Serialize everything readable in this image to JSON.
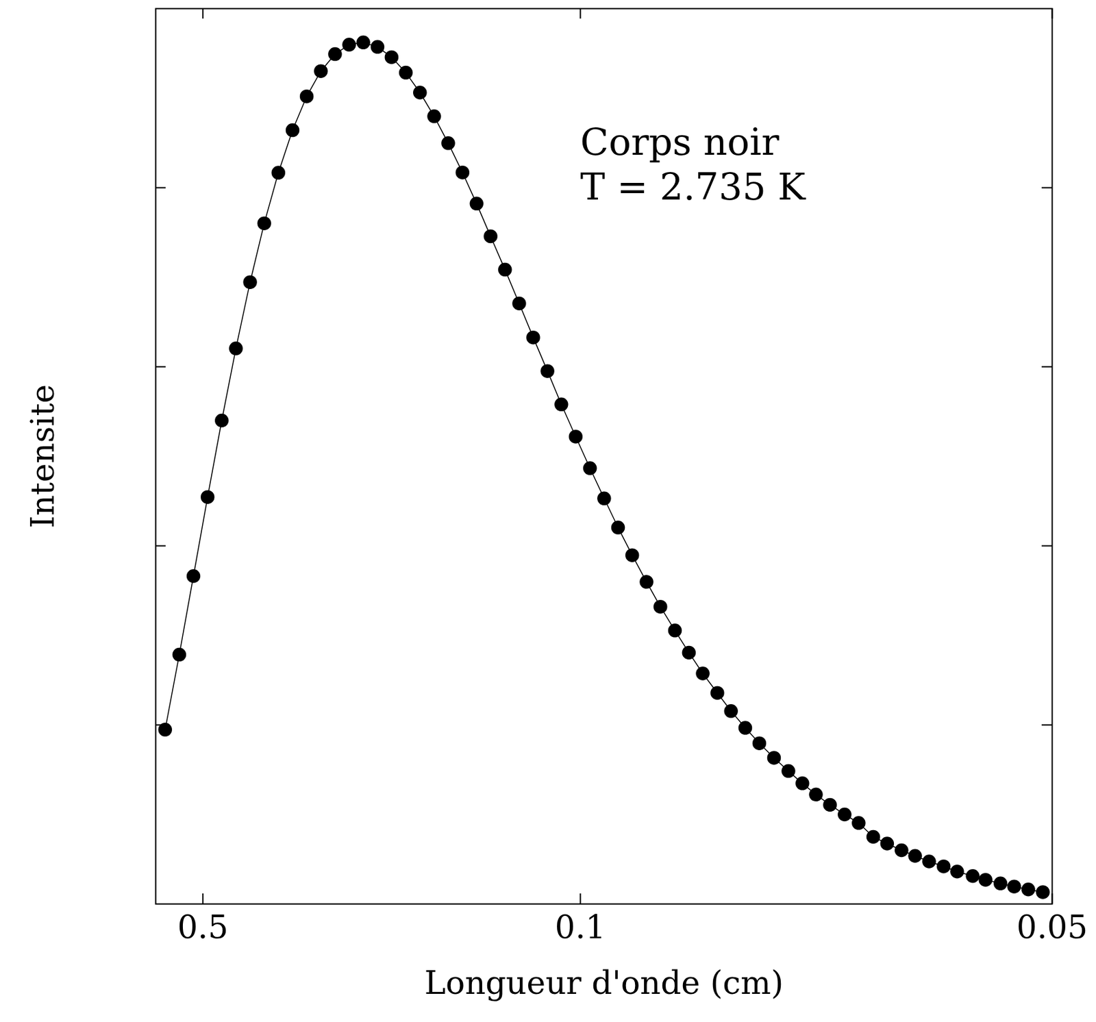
{
  "chart_data": {
    "type": "line",
    "marker": "circle",
    "color": "#000000",
    "xlabel": "Longueur d'onde (cm)",
    "ylabel": "Intensite",
    "annotations": [
      {
        "text": "Corps noir",
        "x": 0.1,
        "y": 340
      },
      {
        "text": "T = 2.735 K",
        "x": 0.1,
        "y": 320
      }
    ],
    "xlim": [
      1,
      0.05
    ],
    "xticks": [
      0.5,
      0.1,
      0.05
    ],
    "ylim": [
      0,
      400
    ],
    "yticks": [
      80,
      160,
      240,
      320
    ],
    "tick_labels": "x",
    "grid": false,
    "x": [
      0.8333,
      0.6667,
      0.5556,
      0.4762,
      0.4167,
      0.3704,
      0.3333,
      0.303,
      0.2778,
      0.2564,
      0.2381,
      0.2222,
      0.2083,
      0.1961,
      0.1852,
      0.1754,
      0.1667,
      0.1587,
      0.1515,
      0.1449,
      0.1389,
      0.1333,
      0.1282,
      0.1235,
      0.119,
      0.1149,
      0.1111,
      0.1075,
      0.1042,
      0.101,
      0.098,
      0.0952,
      0.0926,
      0.0901,
      0.0877,
      0.0855,
      0.0833,
      0.0813,
      0.0794,
      0.0775,
      0.0758,
      0.0741,
      0.0725,
      0.0709,
      0.0694,
      0.068,
      0.0667,
      0.0654,
      0.0641,
      0.0629,
      0.0617,
      0.0606,
      0.0595,
      0.0585,
      0.0575,
      0.0565,
      0.0556,
      0.0546,
      0.0538,
      0.0529,
      0.0521,
      0.0513,
      0.0505
    ],
    "values": [
      77.9,
      111.4,
      146.5,
      181.8,
      216.0,
      248.2,
      277.8,
      304.1,
      326.7,
      345.7,
      360.8,
      372.1,
      379.7,
      383.9,
      384.9,
      382.9,
      378.3,
      371.4,
      362.5,
      351.9,
      339.9,
      326.8,
      312.9,
      298.3,
      283.4,
      268.3,
      253.1,
      238.1,
      223.2,
      208.8,
      194.7,
      181.2,
      168.2,
      155.8,
      143.9,
      132.8,
      122.2,
      112.3,
      103.0,
      94.3,
      86.2,
      78.7,
      71.8,
      65.3,
      59.4,
      53.9,
      48.9,
      44.3,
      40.0,
      36.2,
      30.0,
      27.0,
      24.0,
      21.5,
      19.0,
      16.8,
      14.5,
      12.5,
      10.8,
      9.2,
      7.8,
      6.5,
      5.3
    ]
  }
}
